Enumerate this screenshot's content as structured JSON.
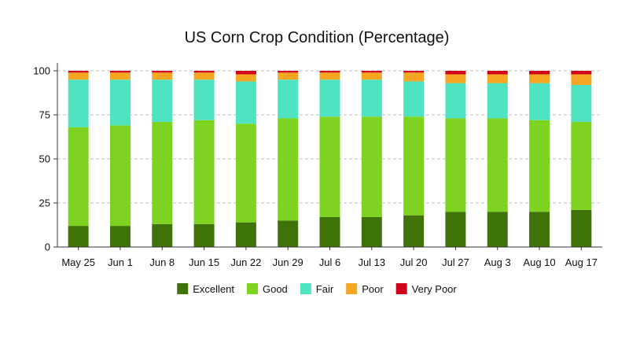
{
  "chart_data": {
    "type": "bar",
    "stacked": true,
    "title": "US Corn Crop Condition (Percentage)",
    "xlabel": "",
    "ylabel": "",
    "ylim": [
      0,
      100
    ],
    "yticks": [
      0,
      25,
      50,
      75,
      100
    ],
    "grid": true,
    "legend_position": "bottom",
    "categories": [
      "May 25",
      "Jun 1",
      "Jun 8",
      "Jun 15",
      "Jun 22",
      "Jun 29",
      "Jul 6",
      "Jul 13",
      "Jul 20",
      "Jul 27",
      "Aug 3",
      "Aug 10",
      "Aug 17"
    ],
    "series": [
      {
        "name": "Excellent",
        "color": "#3f730a",
        "values": [
          12,
          12,
          13,
          13,
          14,
          15,
          17,
          17,
          18,
          20,
          20,
          20,
          21
        ]
      },
      {
        "name": "Good",
        "color": "#7ed321",
        "values": [
          56,
          57,
          58,
          59,
          56,
          58,
          57,
          57,
          56,
          53,
          53,
          52,
          50
        ]
      },
      {
        "name": "Fair",
        "color": "#50e3c2",
        "values": [
          27,
          26,
          24,
          23,
          24,
          22,
          21,
          21,
          20,
          20,
          20,
          21,
          21
        ]
      },
      {
        "name": "Poor",
        "color": "#f5a623",
        "values": [
          4,
          4,
          4,
          4,
          4,
          4,
          4,
          4,
          5,
          5,
          5,
          5,
          6
        ]
      },
      {
        "name": "Very Poor",
        "color": "#d0021b",
        "values": [
          1,
          1,
          1,
          1,
          2,
          1,
          1,
          1,
          1,
          2,
          2,
          2,
          2
        ]
      }
    ]
  }
}
